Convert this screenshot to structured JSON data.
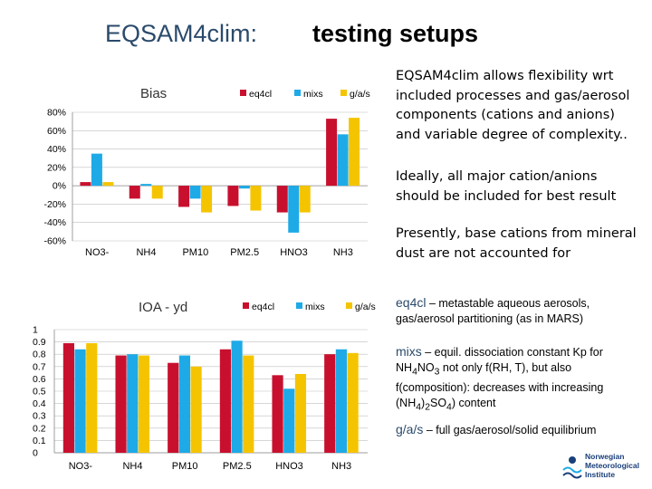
{
  "slide": {
    "title_left": "EQSAM4clim:",
    "title_right": "testing setups",
    "para1": "EQSAM4clim allows flexibility wrt included processes and gas/aerosol components (cations and anions) and variable degree of complexity..",
    "para2": "Ideally, all major cation/anions should be included for best result",
    "para3": "Presently, base cations from mineral dust are not accounted for",
    "note1_key": "eq4cl",
    "note1_text": " – metastable aqueous aerosols, gas/aerosol partitioning (as in MARS)",
    "note2_key": "mixs",
    "note2_text_a": " – equil. dissociation constant Kp for NH",
    "note2_sub1": "4",
    "note2_text_b": "NO",
    "note2_sub2": "3",
    "note2_text_c": " not only f(RH, T), but also f(composition): decreases with increasing (NH",
    "note2_sub3": "4",
    "note2_text_d": ")",
    "note2_sub4": "2",
    "note2_text_e": "SO",
    "note2_sub5": "4",
    "note2_text_f": ") content",
    "note3_key": "g/a/s",
    "note3_text": " – full gas/aerosol/solid equilibrium",
    "logo_lines": [
      "Norwegian",
      "Meteorological",
      "Institute"
    ]
  },
  "colors": {
    "eq4cl": "#c8102e",
    "mixs": "#1eaae7",
    "gas": "#f5c400",
    "grid": "#bfbfbf",
    "axis": "#888888"
  },
  "chart_data": [
    {
      "type": "bar",
      "title": "Bias",
      "categories": [
        "NO3-",
        "NH4",
        "PM10",
        "PM2.5",
        "HNO3",
        "NH3"
      ],
      "series": [
        {
          "name": "eq4cl",
          "values": [
            0.04,
            -0.14,
            -0.23,
            -0.22,
            -0.29,
            0.73
          ]
        },
        {
          "name": "mixs",
          "values": [
            0.35,
            0.02,
            -0.14,
            -0.03,
            -0.51,
            0.56
          ]
        },
        {
          "name": "g/a/s",
          "values": [
            0.04,
            -0.14,
            -0.29,
            -0.27,
            -0.29,
            0.74
          ]
        }
      ],
      "yticks": [
        "80%",
        "60%",
        "40%",
        "20%",
        "0%",
        "-20%",
        "-40%",
        "-60%"
      ],
      "ylim": [
        -0.6,
        0.8
      ],
      "legend": "top-right",
      "grid": true
    },
    {
      "type": "bar",
      "title": "IOA - yd",
      "categories": [
        "NO3-",
        "NH4",
        "PM10",
        "PM2.5",
        "HNO3",
        "NH3"
      ],
      "series": [
        {
          "name": "eq4cl",
          "values": [
            0.89,
            0.79,
            0.73,
            0.84,
            0.63,
            0.8
          ]
        },
        {
          "name": "mixs",
          "values": [
            0.84,
            0.8,
            0.79,
            0.91,
            0.52,
            0.84
          ]
        },
        {
          "name": "g/a/s",
          "values": [
            0.89,
            0.79,
            0.7,
            0.79,
            0.64,
            0.81
          ]
        }
      ],
      "yticks": [
        "1",
        "0.9",
        "0.8",
        "0.7",
        "0.6",
        "0.5",
        "0.4",
        "0.3",
        "0.2",
        "0.1",
        "0"
      ],
      "ylim": [
        0,
        1
      ],
      "legend": "top-right",
      "grid": true
    }
  ]
}
